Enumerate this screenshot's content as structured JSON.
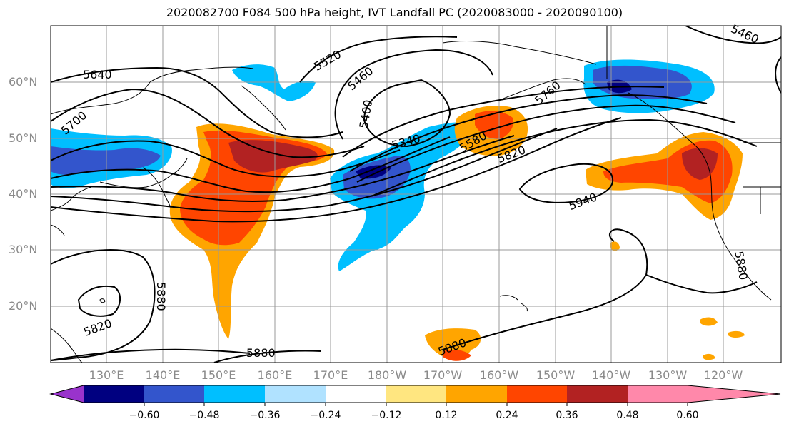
{
  "title": "2020082700 F084 500 hPa height, IVT Landfall PC (2020083000 - 2020090100)",
  "lat_labels": [
    "60°N",
    "50°N",
    "40°N",
    "30°N",
    "20°N"
  ],
  "lon_labels": [
    "130°E",
    "140°E",
    "150°E",
    "160°E",
    "170°E",
    "180°W",
    "170°W",
    "160°W",
    "150°W",
    "140°W",
    "130°W",
    "120°W"
  ],
  "contour_labels": [
    "5640",
    "5700",
    "5520",
    "5460",
    "5400",
    "5340",
    "5580",
    "5820",
    "5940",
    "5880",
    "5820",
    "5880",
    "5880",
    "5880",
    "5460",
    "5760"
  ],
  "colorbar": {
    "ticks": [
      "−0.60",
      "−0.48",
      "−0.36",
      "−0.24",
      "−0.12",
      "0.12",
      "0.24",
      "0.36",
      "0.48",
      "0.60"
    ],
    "colors": [
      "#9933cc",
      "#000080",
      "#3355cc",
      "#00bfff",
      "#b0e2ff",
      "#ffffff",
      "#ffe680",
      "#ffa500",
      "#ff4500",
      "#b22222",
      "#ff88aa"
    ]
  }
}
